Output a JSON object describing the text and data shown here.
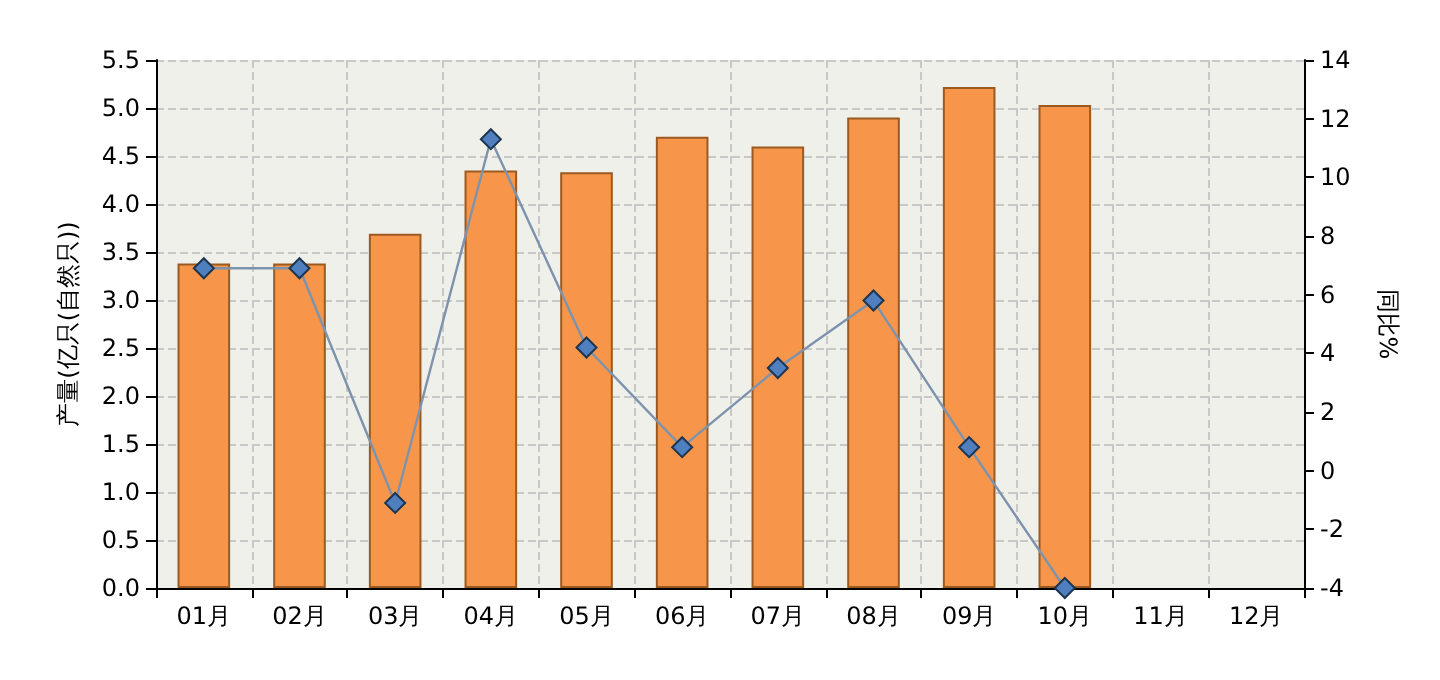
{
  "chart_data": {
    "type": "bar",
    "ylabel": "产量(亿只(自然只))",
    "y2label": "同比%",
    "categories": [
      "01月",
      "02月",
      "03月",
      "04月",
      "05月",
      "06月",
      "07月",
      "08月",
      "09月",
      "10月",
      "11月",
      "12月"
    ],
    "series": [
      {
        "color": "#f7964a",
        "values": [
          3.38,
          3.38,
          3.69,
          4.35,
          4.33,
          4.7,
          4.6,
          4.9,
          5.22,
          5.03,
          null,
          null
        ]
      },
      {
        "type": "line",
        "axis": "y2",
        "color": "#4f7fbf",
        "values": [
          6.9,
          6.9,
          -1.1,
          11.3,
          4.2,
          0.8,
          3.5,
          5.8,
          0.8,
          -4,
          null,
          null
        ]
      }
    ],
    "ylim": [
      0,
      5.5
    ],
    "yticks": [
      {
        "value": 0,
        "label": "0.0"
      },
      0.5,
      {
        "value": 1,
        "label": "1.0"
      },
      1.5,
      {
        "value": 2,
        "label": "2.0"
      },
      2.5,
      {
        "value": 3,
        "label": "3.0"
      },
      3.5,
      {
        "value": 4,
        "label": "4.0"
      },
      4.5,
      {
        "value": 5,
        "label": "5.0"
      },
      5.5
    ],
    "y2lim": [
      -4,
      14
    ],
    "y2ticks": [
      -4,
      -2,
      0,
      2,
      4,
      6,
      8,
      10,
      12,
      14
    ],
    "grid": true,
    "marker": "diamond",
    "line_style": "solid"
  }
}
